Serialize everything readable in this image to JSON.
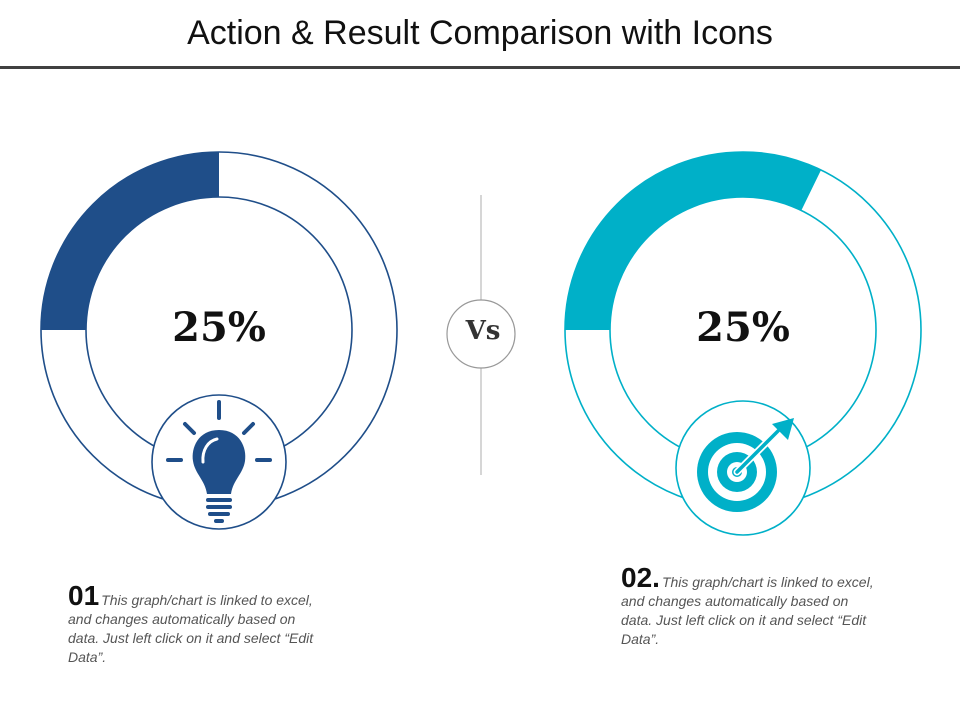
{
  "title": "Action & Result Comparison with Icons",
  "vs_label": "Vs",
  "colors": {
    "left_accent": "#1f4e89",
    "right_accent": "#00b0c8",
    "divider": "#bbbbbb"
  },
  "chart_data": [
    {
      "type": "donut",
      "value_label": "25%",
      "value_percent": 25,
      "icon": "lightbulb-icon"
    },
    {
      "type": "donut",
      "value_label": "25%",
      "value_percent": 25,
      "icon": "target-icon"
    }
  ],
  "items": [
    {
      "number": "01",
      "text": "This graph/chart is linked to excel, and changes automatically based on data. Just left click on it and select “Edit Data”."
    },
    {
      "number": "02.",
      "text": "This graph/chart is linked to excel, and changes automatically based on data. Just left click on it and select “Edit Data”."
    }
  ]
}
